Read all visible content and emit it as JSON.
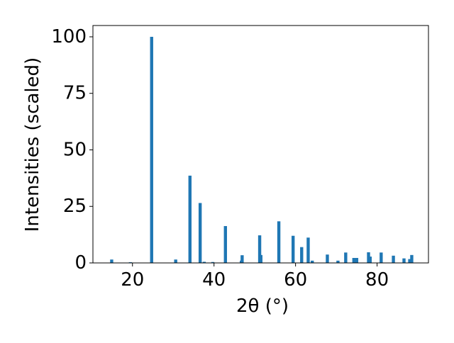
{
  "chart_data": {
    "type": "bar",
    "xlabel": "2θ (°)",
    "ylabel": "Intensities (scaled)",
    "x": [
      14.9,
      19.5,
      24.7,
      30.6,
      34.1,
      36.6,
      37.6,
      39.7,
      42.8,
      46.7,
      46.9,
      51.2,
      51.5,
      55.9,
      59.4,
      61.5,
      63.1,
      64.1,
      67.8,
      70.4,
      72.3,
      74.3,
      75.0,
      77.9,
      78.3,
      81.0,
      84.0,
      86.6,
      88.0,
      88.5
    ],
    "values": [
      1.5,
      0.3,
      100,
      1.5,
      38.6,
      26.5,
      0.5,
      0.4,
      16.3,
      1.0,
      3.4,
      12.2,
      3.5,
      18.4,
      12.0,
      7.0,
      11.2,
      1.0,
      3.7,
      1.0,
      4.6,
      2.2,
      2.2,
      4.7,
      2.8,
      4.6,
      3.2,
      2.0,
      1.7,
      3.5
    ],
    "color": "#1f77b4",
    "xlim": [
      10.3,
      92.6
    ],
    "ylim": [
      0,
      105
    ],
    "xticks": [
      20,
      40,
      60,
      80
    ],
    "yticks": [
      0,
      25,
      50,
      75,
      100
    ],
    "grid": false
  }
}
